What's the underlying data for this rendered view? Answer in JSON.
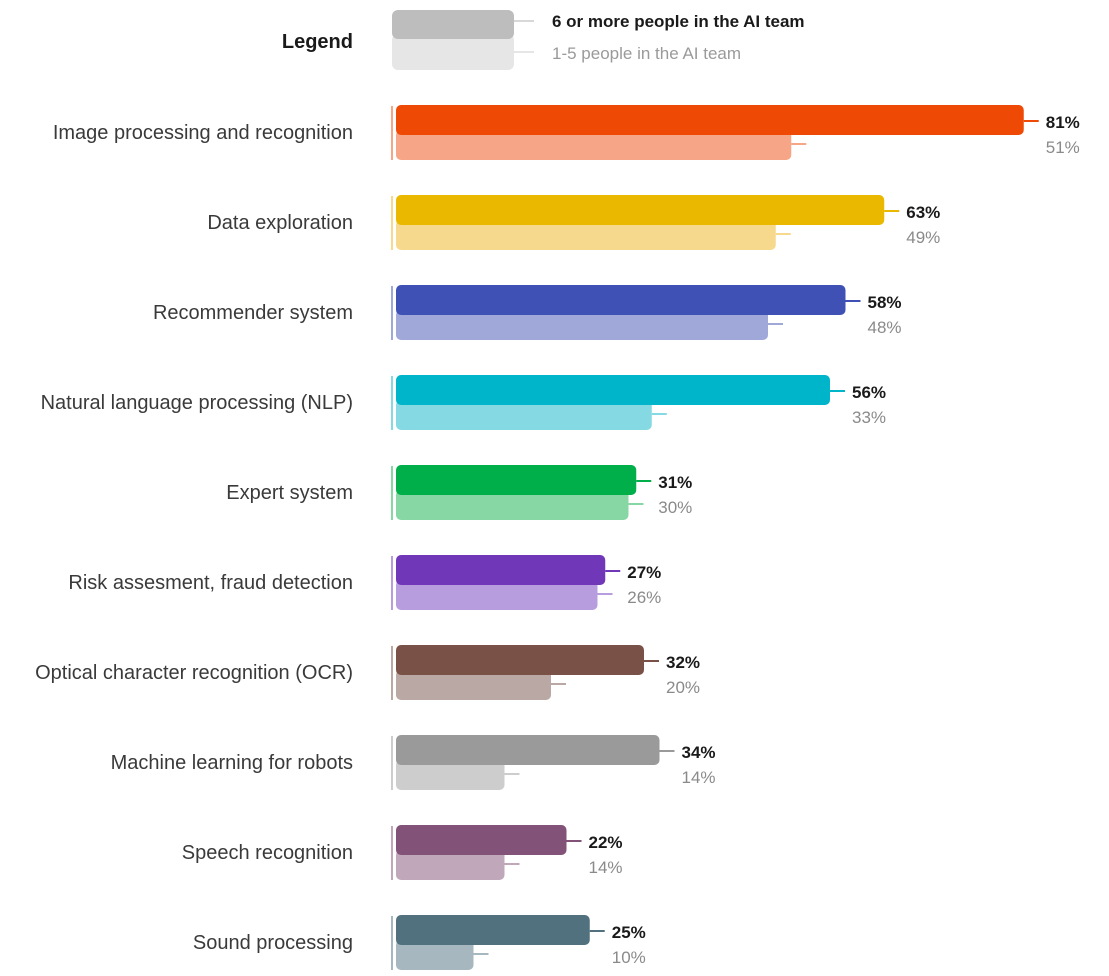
{
  "chart_data": {
    "type": "bar",
    "orientation": "horizontal",
    "legend": {
      "title": "Legend",
      "placement": "top",
      "entries": [
        {
          "key": "big",
          "label": "6 or more people in the AI team",
          "color": "#bdbdbd"
        },
        {
          "key": "small",
          "label": "1-5 people in the AI team",
          "color": "#e6e6e6"
        }
      ]
    },
    "categories": [
      "Image processing and recognition",
      "Data exploration",
      "Recommender system",
      "Natural language processing (NLP)",
      "Expert system",
      "Risk assesment, fraud detection",
      "Optical character recognition (OCR)",
      "Machine learning for robots",
      "Speech recognition",
      "Sound processing"
    ],
    "series": [
      {
        "name": "6 or more people in the AI team",
        "values": [
          81,
          63,
          58,
          56,
          31,
          27,
          32,
          34,
          22,
          25
        ]
      },
      {
        "name": "1-5 people in the AI team",
        "values": [
          51,
          49,
          48,
          33,
          30,
          26,
          20,
          14,
          14,
          10
        ]
      }
    ],
    "value_labels": {
      "big": [
        "81%",
        "63%",
        "58%",
        "56%",
        "31%",
        "27%",
        "32%",
        "34%",
        "22%",
        "25%"
      ],
      "small": [
        "51%",
        "49%",
        "48%",
        "33%",
        "30%",
        "26%",
        "20%",
        "14%",
        "14%",
        "10%"
      ]
    },
    "colors_dark": [
      "#ee4a06",
      "#ebb800",
      "#3f51b5",
      "#00b5c9",
      "#00af49",
      "#7038b8",
      "#7a5146",
      "#9a9a9a",
      "#825279",
      "#51717f"
    ],
    "colors_light": [
      "#f6a587",
      "#f6d98c",
      "#a0a8d9",
      "#85d9e3",
      "#86d7a3",
      "#b79dde",
      "#b9a8a3",
      "#cdcdcd",
      "#c0a7ba",
      "#a6b7bf"
    ],
    "xlim": [
      0,
      100
    ],
    "grid": false,
    "axes_visible": false
  }
}
